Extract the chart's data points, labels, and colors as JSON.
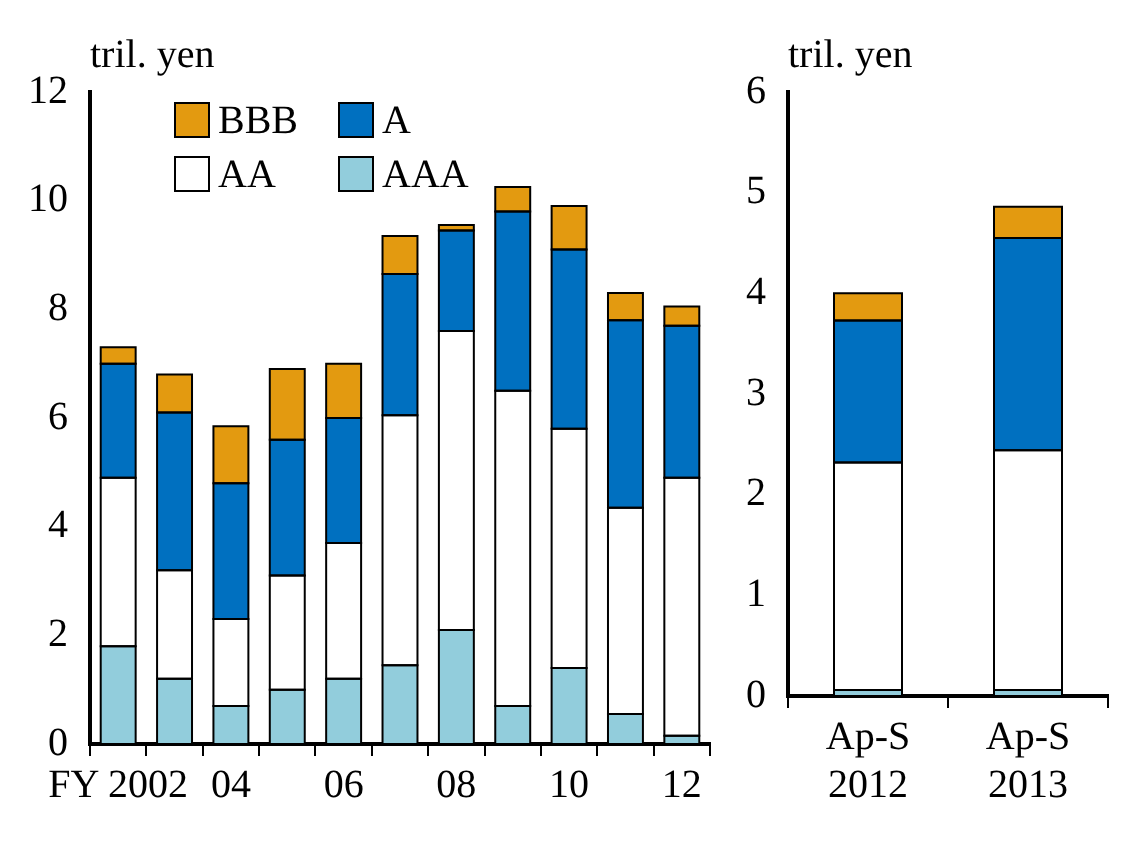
{
  "chart_data": [
    {
      "type": "bar",
      "stacked": true,
      "ylabel": "tril. yen",
      "categories": [
        "FY 2002",
        null,
        "04",
        null,
        "06",
        null,
        "08",
        null,
        "10",
        null,
        "12"
      ],
      "legend": "top left",
      "ylim": [
        0,
        12
      ],
      "yticks": [
        0,
        2,
        4,
        6,
        8,
        10,
        12
      ],
      "series": [
        {
          "name": "AAA",
          "color": "#92cddc",
          "values": [
            1.8,
            1.2,
            0.7,
            1.0,
            1.2,
            1.45,
            2.1,
            0.7,
            1.4,
            0.55,
            0.15
          ]
        },
        {
          "name": "AA",
          "color": "#ffffff",
          "values": [
            3.1,
            2.0,
            1.6,
            2.1,
            2.5,
            4.6,
            5.5,
            5.8,
            4.4,
            3.8,
            4.75
          ]
        },
        {
          "name": "A",
          "color": "#0070c0",
          "values": [
            2.1,
            2.9,
            2.5,
            2.5,
            2.3,
            2.6,
            1.85,
            3.3,
            3.3,
            3.45,
            2.8
          ]
        },
        {
          "name": "BBB",
          "color": "#e39a10",
          "values": [
            0.3,
            0.7,
            1.05,
            1.3,
            1.0,
            0.7,
            0.1,
            0.45,
            0.8,
            0.5,
            0.35
          ]
        }
      ]
    },
    {
      "type": "bar",
      "stacked": true,
      "ylabel": "tril. yen",
      "categories": [
        "Ap-S\n2012",
        "Ap-S\n2013"
      ],
      "ylim": [
        0,
        6
      ],
      "yticks": [
        0,
        1,
        2,
        3,
        4,
        5,
        6
      ],
      "series": [
        {
          "color": "#92cddc",
          "values": [
            0.06,
            0.06
          ]
        },
        {
          "color": "#ffffff",
          "values": [
            2.26,
            2.38
          ]
        },
        {
          "color": "#0070c0",
          "values": [
            1.41,
            2.11
          ]
        },
        {
          "color": "#e39a10",
          "values": [
            0.27,
            0.31
          ]
        }
      ]
    }
  ]
}
